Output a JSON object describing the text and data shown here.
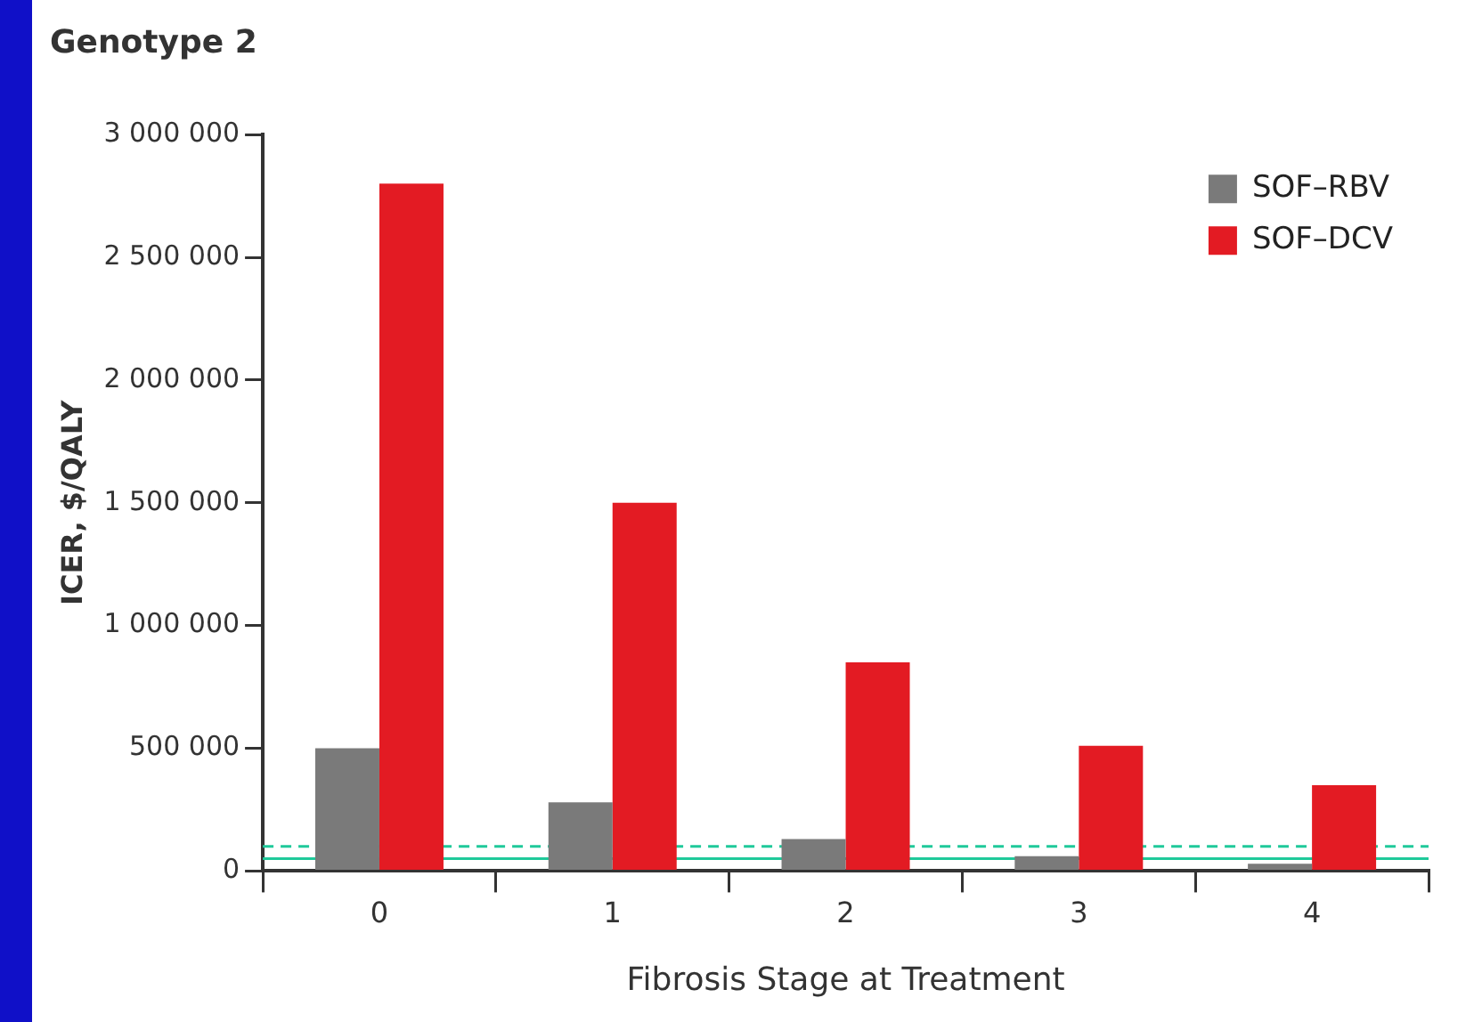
{
  "chart_data": {
    "type": "bar",
    "title": "Genotype 2",
    "xlabel": "Fibrosis Stage at Treatment",
    "ylabel": "ICER, $/QALY",
    "categories": [
      "0",
      "1",
      "2",
      "3",
      "4"
    ],
    "series": [
      {
        "name": "SOF–RBV",
        "color": "#7a7a7a",
        "values": [
          500000,
          280000,
          130000,
          60000,
          30000
        ]
      },
      {
        "name": "SOF–DCV",
        "color": "#e31b23",
        "values": [
          2800000,
          1500000,
          850000,
          510000,
          350000
        ]
      }
    ],
    "ylim": [
      0,
      3000000
    ],
    "yticks": [
      {
        "value": 0,
        "label": "0"
      },
      {
        "value": 500000,
        "label": "500 000"
      },
      {
        "value": 1000000,
        "label": "1 000 000"
      },
      {
        "value": 1500000,
        "label": "1 500 000"
      },
      {
        "value": 2000000,
        "label": "2 000 000"
      },
      {
        "value": 2500000,
        "label": "2 500 000"
      },
      {
        "value": 3000000,
        "label": "3 000 000"
      }
    ],
    "ref_lines": [
      {
        "axis": "y",
        "value": 50000,
        "label": null,
        "color": "#1fc99a",
        "line_style": "solid"
      },
      {
        "axis": "y",
        "value": 100000,
        "label": null,
        "color": "#1fc99a",
        "line_style": "dashed"
      }
    ],
    "legend": "top right",
    "grid": false
  }
}
